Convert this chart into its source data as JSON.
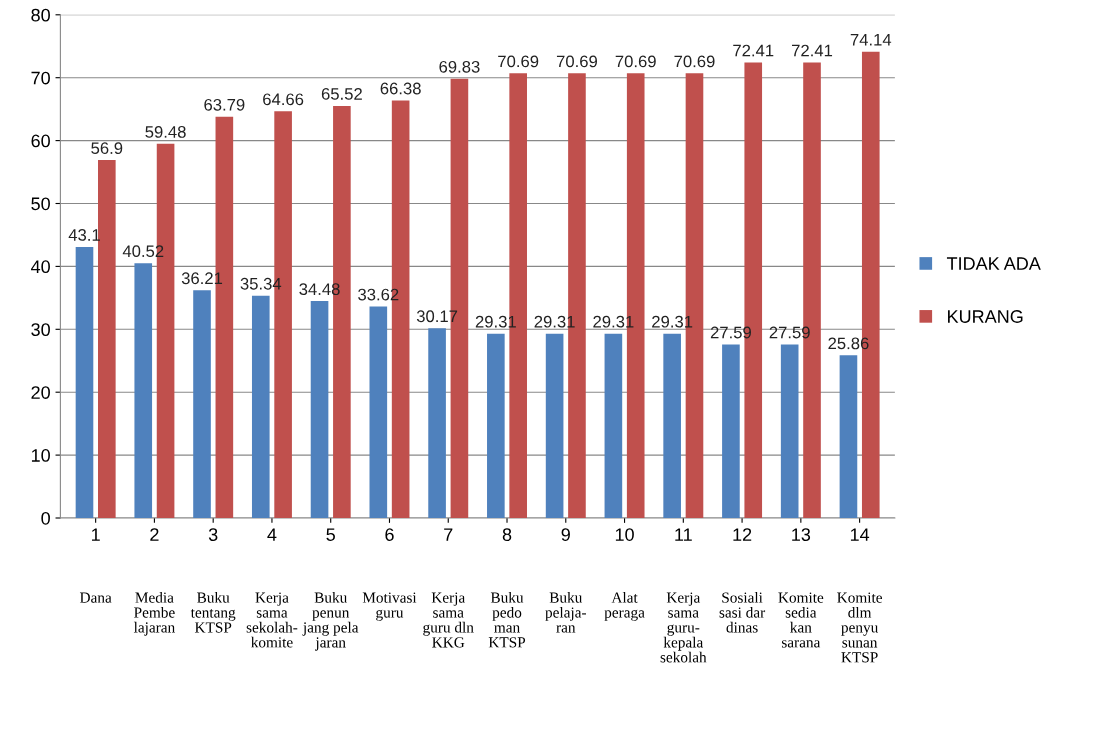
{
  "chart_data": {
    "type": "bar",
    "categories": [
      "1",
      "2",
      "3",
      "4",
      "5",
      "6",
      "7",
      "8",
      "9",
      "10",
      "11",
      "12",
      "13",
      "14"
    ],
    "series": [
      {
        "name": "TIDAK ADA",
        "color": "#4f81bd",
        "values": [
          43.1,
          40.52,
          36.21,
          35.34,
          34.48,
          33.62,
          30.17,
          29.31,
          29.31,
          29.31,
          29.31,
          27.59,
          27.59,
          25.86
        ]
      },
      {
        "name": "KURANG",
        "color": "#c0504d",
        "values": [
          56.9,
          59.48,
          63.79,
          64.66,
          65.52,
          66.38,
          69.83,
          70.69,
          70.69,
          70.69,
          70.69,
          72.41,
          72.41,
          74.14
        ]
      }
    ],
    "ylim": [
      0,
      80
    ],
    "yticks": [
      0,
      10,
      20,
      30,
      40,
      50,
      60,
      70,
      80
    ],
    "grid": "y",
    "legend": "right",
    "data_labels": true,
    "annotations": [
      "Dana",
      "Media\nPembe\nlajaran",
      "Buku\ntentang\nKTSP",
      "Kerja\nsama\nsekolah-\nkomite",
      "Buku\npenun\njang pela\njaran",
      "Motivasi\nguru",
      "Kerja\nsama\nguru dln\nKKG",
      "Buku\npedo\nman\nKTSP",
      "Buku\npelaja-\nran",
      "Alat\nperaga",
      "Kerja\nsama\nguru-\nkepala\nsekolah",
      "Sosiali\nsasi dar\ndinas",
      "Komite\nsedia\nkan\nsarana",
      "Komite\ndlm\npenyu\nsunan\nKTSP"
    ]
  }
}
